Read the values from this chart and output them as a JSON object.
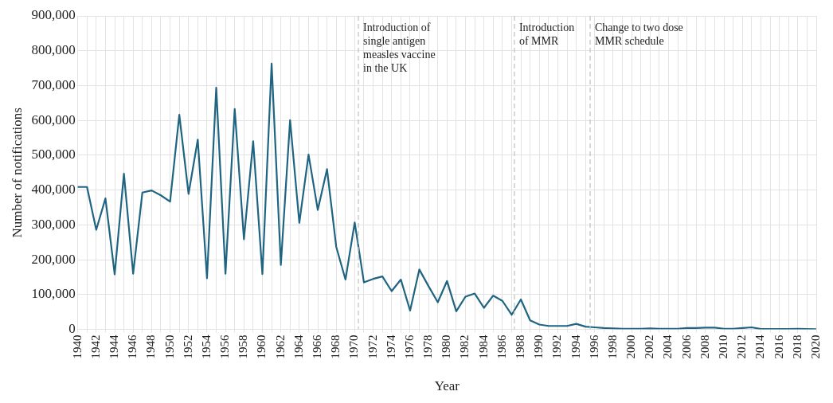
{
  "chart_data": {
    "type": "line",
    "xlabel": "Year",
    "ylabel": "Number of notifications",
    "x": [
      1940,
      1941,
      1942,
      1943,
      1944,
      1945,
      1946,
      1947,
      1948,
      1949,
      1950,
      1951,
      1952,
      1953,
      1954,
      1955,
      1956,
      1957,
      1958,
      1959,
      1960,
      1961,
      1962,
      1963,
      1964,
      1965,
      1966,
      1967,
      1968,
      1969,
      1970,
      1971,
      1972,
      1973,
      1974,
      1975,
      1976,
      1977,
      1978,
      1979,
      1980,
      1981,
      1982,
      1983,
      1984,
      1985,
      1986,
      1987,
      1988,
      1989,
      1990,
      1991,
      1992,
      1993,
      1994,
      1995,
      1996,
      1997,
      1998,
      1999,
      2000,
      2001,
      2002,
      2003,
      2004,
      2005,
      2006,
      2007,
      2008,
      2009,
      2010,
      2011,
      2012,
      2013,
      2014,
      2015,
      2016,
      2017,
      2018,
      2019,
      2020
    ],
    "series": [
      {
        "color": "#1f6582",
        "values": [
          409000,
          409000,
          286000,
          376000,
          158000,
          447000,
          160000,
          393000,
          399000,
          385000,
          367000,
          616000,
          389000,
          545000,
          147000,
          694000,
          160000,
          633000,
          259000,
          540000,
          159000,
          763000,
          185000,
          601000,
          306000,
          502000,
          343000,
          460000,
          237000,
          143000,
          307000,
          135000,
          145000,
          152000,
          110000,
          143000,
          54000,
          172000,
          124000,
          78000,
          139000,
          52000,
          94000,
          103000,
          62000,
          97000,
          82000,
          42000,
          86000,
          26000,
          14000,
          10000,
          10000,
          10000,
          16000,
          8000,
          6000,
          4000,
          3000,
          2000,
          2000,
          2000,
          3000,
          2000,
          2000,
          2000,
          4000,
          4000,
          5000,
          5000,
          2000,
          2000,
          4000,
          6000,
          1000,
          1000,
          1000,
          1000,
          2000,
          1000,
          500
        ]
      }
    ],
    "xlim": [
      1940,
      2020
    ],
    "xticks": [
      1940,
      {
        "value": 1941,
        "label": null
      },
      1942,
      {
        "value": 1943,
        "label": null
      },
      1944,
      {
        "value": 1945,
        "label": null
      },
      1946,
      {
        "value": 1947,
        "label": null
      },
      1948,
      {
        "value": 1949,
        "label": null
      },
      1950,
      {
        "value": 1951,
        "label": null
      },
      1952,
      {
        "value": 1953,
        "label": null
      },
      1954,
      {
        "value": 1955,
        "label": null
      },
      1956,
      {
        "value": 1957,
        "label": null
      },
      1958,
      {
        "value": 1959,
        "label": null
      },
      1960,
      {
        "value": 1961,
        "label": null
      },
      1962,
      {
        "value": 1963,
        "label": null
      },
      1964,
      {
        "value": 1965,
        "label": null
      },
      1966,
      {
        "value": 1967,
        "label": null
      },
      1968,
      {
        "value": 1969,
        "label": null
      },
      1970,
      {
        "value": 1971,
        "label": null
      },
      1972,
      {
        "value": 1973,
        "label": null
      },
      1974,
      {
        "value": 1975,
        "label": null
      },
      1976,
      {
        "value": 1977,
        "label": null
      },
      1978,
      {
        "value": 1979,
        "label": null
      },
      1980,
      {
        "value": 1981,
        "label": null
      },
      1982,
      {
        "value": 1983,
        "label": null
      },
      1984,
      {
        "value": 1985,
        "label": null
      },
      1986,
      {
        "value": 1987,
        "label": null
      },
      1988,
      {
        "value": 1989,
        "label": null
      },
      1990,
      {
        "value": 1991,
        "label": null
      },
      1992,
      {
        "value": 1993,
        "label": null
      },
      1994,
      {
        "value": 1995,
        "label": null
      },
      1996,
      {
        "value": 1997,
        "label": null
      },
      1998,
      {
        "value": 1999,
        "label": null
      },
      2000,
      {
        "value": 2001,
        "label": null
      },
      2002,
      {
        "value": 2003,
        "label": null
      },
      2004,
      {
        "value": 2005,
        "label": null
      },
      2006,
      {
        "value": 2007,
        "label": null
      },
      2008,
      {
        "value": 2009,
        "label": null
      },
      2010,
      {
        "value": 2011,
        "label": null
      },
      2012,
      {
        "value": 2013,
        "label": null
      },
      2014,
      {
        "value": 2015,
        "label": null
      },
      2016,
      {
        "value": 2017,
        "label": null
      },
      2018,
      {
        "value": 2019,
        "label": null
      },
      2020
    ],
    "ylim": [
      0,
      900000
    ],
    "yticks": [
      {
        "value": 0,
        "label": "0"
      },
      {
        "value": 100000,
        "label": "100,000"
      },
      {
        "value": 200000,
        "label": "200,000"
      },
      {
        "value": 300000,
        "label": "300,000"
      },
      {
        "value": 400000,
        "label": "400,000"
      },
      {
        "value": 500000,
        "label": "500,000"
      },
      {
        "value": 600000,
        "label": "600,000"
      },
      {
        "value": 700000,
        "label": "700,000"
      },
      {
        "value": 800000,
        "label": "800,000"
      },
      {
        "value": 900000,
        "label": "900,000"
      }
    ],
    "ref_lines": [
      {
        "axis": "x",
        "value": 1970.4,
        "label": "Introduction of\nsingle antigen\nmeasles vaccine\nin the UK",
        "color": "#c0c0c0",
        "line_style": "dashed"
      },
      {
        "axis": "x",
        "value": 1987.3,
        "label": "Introduction\nof MMR",
        "color": "#c0c0c0",
        "line_style": "dashed"
      },
      {
        "axis": "x",
        "value": 1995.5,
        "label": "Change to two dose\nMMR schedule",
        "color": "#c0c0c0",
        "line_style": "dashed"
      }
    ],
    "grid": true,
    "legend": false,
    "marker": "none",
    "line_style": "solid"
  }
}
